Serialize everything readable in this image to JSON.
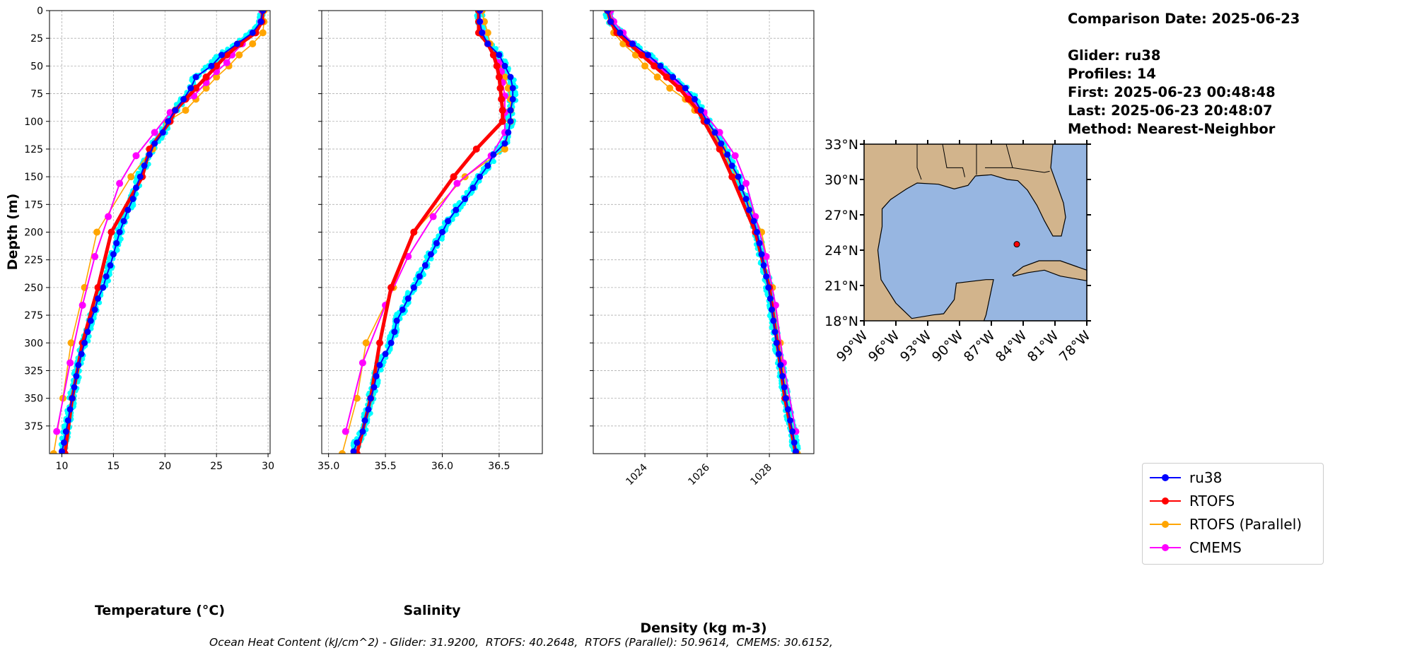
{
  "info": {
    "comparison_date": "Comparison Date: 2025-06-23",
    "glider": "Glider: ru38",
    "profiles": "Profiles: 14",
    "first": "First: 2025-06-23 00:48:48",
    "last": "Last: 2025-06-23 20:48:07",
    "method": "Method: Nearest-Neighbor"
  },
  "footer": "Ocean Heat Content (kJ/cm^2) - Glider: 31.9200,  RTOFS: 40.2648,  RTOFS (Parallel): 50.9614,  CMEMS: 30.6152,",
  "legend": [
    {
      "label": "ru38",
      "color": "#0000ff"
    },
    {
      "label": "RTOFS",
      "color": "#ff0000"
    },
    {
      "label": "RTOFS (Parallel)",
      "color": "#ffa500"
    },
    {
      "label": "CMEMS",
      "color": "#ff00ff"
    }
  ],
  "colors": {
    "profiles": "#00ffff",
    "land": "#d2b48c",
    "sea": "#97b6e1"
  },
  "map": {
    "lat_ticks": [
      "33°N",
      "30°N",
      "27°N",
      "24°N",
      "21°N",
      "18°N"
    ],
    "lon_ticks": [
      "99°W",
      "96°W",
      "93°W",
      "90°W",
      "87°W",
      "84°W",
      "81°W",
      "78°W"
    ],
    "lon_range": [
      -99,
      -78
    ],
    "lat_range": [
      18,
      33
    ],
    "glider_location": [
      -84.6,
      24.5
    ]
  },
  "chart_data": {
    "type": "line",
    "ylabel": "Depth (m)",
    "ylim": [
      400,
      0
    ],
    "yticks": [
      0,
      25,
      50,
      75,
      100,
      125,
      150,
      175,
      200,
      225,
      250,
      275,
      300,
      325,
      350,
      375
    ],
    "grid": true,
    "glider_depths": [
      0,
      10,
      20,
      30,
      40,
      50,
      60,
      70,
      80,
      90,
      100,
      110,
      120,
      130,
      140,
      150,
      160,
      170,
      180,
      190,
      200,
      210,
      220,
      230,
      240,
      250,
      260,
      270,
      280,
      290,
      300,
      310,
      320,
      330,
      340,
      350,
      360,
      370,
      380,
      390,
      398
    ],
    "rtofs_depths": [
      0,
      10,
      20,
      30,
      40,
      50,
      60,
      70,
      80,
      90,
      100,
      125,
      150,
      200,
      250,
      300,
      350,
      400
    ],
    "cmems_depths": [
      0,
      10,
      20,
      30,
      40,
      47,
      55,
      65,
      77,
      92,
      110,
      131,
      156,
      186,
      222,
      266,
      318,
      380
    ],
    "panels": [
      {
        "xlabel": "Temperature (°C)",
        "xlim": [
          8.8,
          30.2
        ],
        "xticks": [
          10,
          15,
          20,
          25,
          30
        ],
        "tick_rotation": false,
        "series": {
          "ru38": [
            29.5,
            29.3,
            28.5,
            27,
            25.5,
            24.5,
            23,
            22.5,
            21.8,
            21,
            20.3,
            19.8,
            19,
            18.5,
            18,
            17.6,
            17.2,
            16.9,
            16.4,
            16,
            15.6,
            15.3,
            15,
            14.7,
            14.3,
            14,
            13.5,
            13.2,
            12.8,
            12.5,
            12.2,
            11.9,
            11.6,
            11.4,
            11.2,
            11,
            10.8,
            10.6,
            10.4,
            10.2,
            10.0
          ],
          "RTOFS": [
            29.5,
            29.4,
            28.8,
            27.3,
            26,
            25,
            24,
            23,
            22,
            21,
            20.5,
            18.5,
            17.8,
            14.8,
            13.5,
            12,
            11,
            10.3
          ],
          "RTOFS (Parallel)": [
            29.6,
            29.6,
            29.5,
            28.5,
            27.2,
            26.2,
            25,
            24,
            23,
            22,
            20.2,
            18.8,
            16.7,
            13.4,
            12.2,
            10.9,
            10.1,
            9.2
          ],
          "CMEMS": [
            29.4,
            29.3,
            28.7,
            27.5,
            26.5,
            26,
            25,
            24,
            22.8,
            20.5,
            19,
            17.2,
            15.6,
            14.5,
            13.2,
            12,
            10.8,
            9.5
          ]
        }
      },
      {
        "xlabel": "Salinity",
        "xlim": [
          34.94,
          36.88
        ],
        "xticks": [
          35.0,
          35.5,
          36.0,
          36.5
        ],
        "tick_rotation": false,
        "series": {
          "ru38": [
            36.33,
            36.33,
            36.35,
            36.4,
            36.5,
            36.55,
            36.6,
            36.62,
            36.62,
            36.6,
            36.6,
            36.58,
            36.55,
            36.45,
            36.4,
            36.33,
            36.27,
            36.2,
            36.12,
            36.05,
            36.0,
            35.95,
            35.9,
            35.85,
            35.8,
            35.75,
            35.7,
            35.65,
            35.6,
            35.58,
            35.55,
            35.5,
            35.45,
            35.42,
            35.4,
            35.37,
            35.35,
            35.32,
            35.3,
            35.25,
            35.22
          ],
          "RTOFS": [
            36.32,
            36.32,
            36.32,
            36.4,
            36.45,
            36.48,
            36.5,
            36.51,
            36.52,
            36.53,
            36.53,
            36.3,
            36.1,
            35.75,
            35.55,
            35.45,
            35.37,
            35.25
          ],
          "RTOFS (Parallel)": [
            36.35,
            36.37,
            36.4,
            36.42,
            36.45,
            36.5,
            36.55,
            36.58,
            36.6,
            36.6,
            36.6,
            36.55,
            36.2,
            35.75,
            35.57,
            35.33,
            35.25,
            35.12
          ],
          "CMEMS": [
            36.33,
            36.33,
            36.35,
            36.4,
            36.45,
            36.5,
            36.52,
            36.53,
            36.55,
            36.55,
            36.55,
            36.43,
            36.13,
            35.92,
            35.7,
            35.5,
            35.3,
            35.15
          ]
        }
      },
      {
        "xlabel": "Density (kg m-3)",
        "xlim": [
          1022.34,
          1029.43
        ],
        "xticks": [
          1024,
          1026,
          1028
        ],
        "tick_rotation": true,
        "series": {
          "ru38": [
            1022.8,
            1022.9,
            1023.2,
            1023.6,
            1024.1,
            1024.5,
            1024.9,
            1025.3,
            1025.6,
            1025.8,
            1026.0,
            1026.25,
            1026.45,
            1026.65,
            1026.8,
            1027.0,
            1027.1,
            1027.25,
            1027.35,
            1027.5,
            1027.6,
            1027.68,
            1027.75,
            1027.82,
            1027.9,
            1027.97,
            1028.03,
            1028.08,
            1028.13,
            1028.18,
            1028.23,
            1028.3,
            1028.36,
            1028.42,
            1028.48,
            1028.53,
            1028.6,
            1028.67,
            1028.74,
            1028.8,
            1028.85
          ],
          "RTOFS": [
            1022.8,
            1022.9,
            1023.1,
            1023.5,
            1023.9,
            1024.3,
            1024.7,
            1025.1,
            1025.4,
            1025.7,
            1025.9,
            1026.4,
            1026.8,
            1027.55,
            1028.0,
            1028.25,
            1028.5,
            1028.85
          ],
          "RTOFS (Parallel)": [
            1022.8,
            1022.9,
            1023.0,
            1023.3,
            1023.7,
            1024.0,
            1024.4,
            1024.8,
            1025.3,
            1025.6,
            1026.0,
            1026.5,
            1026.95,
            1027.75,
            1028.1,
            1028.35,
            1028.55,
            1028.9
          ],
          "CMEMS": [
            1022.9,
            1023.0,
            1023.3,
            1023.6,
            1024.0,
            1024.3,
            1024.6,
            1025.0,
            1025.4,
            1025.9,
            1026.4,
            1026.9,
            1027.25,
            1027.55,
            1027.9,
            1028.2,
            1028.45,
            1028.85
          ]
        }
      }
    ]
  }
}
